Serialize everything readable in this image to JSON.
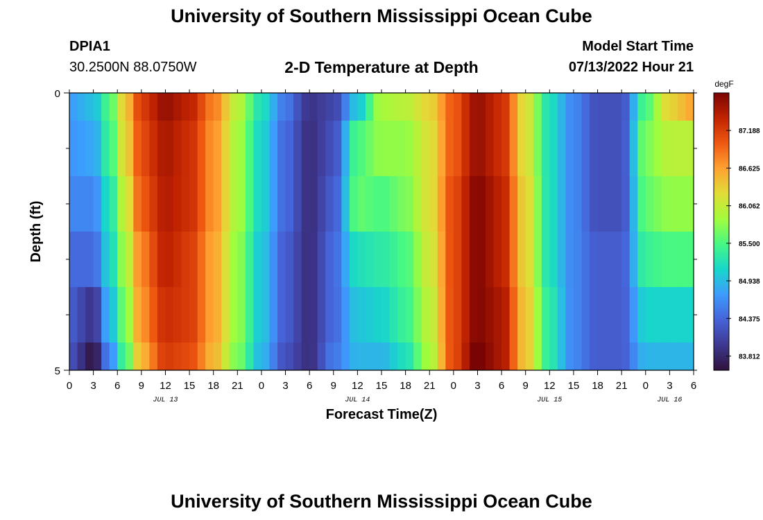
{
  "header": {
    "title": "University of Southern Mississippi Ocean Cube",
    "station": "DPIA1",
    "coords": "30.2500N  88.0750W",
    "subtitle": "2-D Temperature at Depth",
    "model_start_label": "Model Start Time",
    "model_start_value": "07/13/2022 Hour 21"
  },
  "footer": {
    "title": "University of Southern Mississippi Ocean Cube"
  },
  "colors": {
    "ramp": [
      "#30123b",
      "#3e378f",
      "#4663d8",
      "#3e9bfe",
      "#18d6cb",
      "#46f884",
      "#a2fc3c",
      "#e1dd37",
      "#fea331",
      "#ef5911",
      "#c22402",
      "#7a0403"
    ]
  },
  "chart_data": {
    "type": "heatmap",
    "title": "2-D Temperature at Depth",
    "xlabel": "Forecast Time(Z)",
    "ylabel": "Depth (ft)",
    "x_hours_from_jul13_00z": [
      0,
      78
    ],
    "ylim": [
      0,
      5
    ],
    "y_tick_labels": [
      "0",
      "5"
    ],
    "x_tick_labels": [
      "0",
      "3",
      "6",
      "9",
      "12",
      "15",
      "18",
      "21",
      "0",
      "3",
      "6",
      "9",
      "12",
      "15",
      "18",
      "21",
      "0",
      "3",
      "6",
      "9",
      "12",
      "15",
      "18",
      "21",
      "0",
      "3",
      "6"
    ],
    "day_labels": [
      "JUL 13",
      "JUL 14",
      "JUL 15",
      "JUL 16"
    ],
    "colorbar": {
      "unit": "degF",
      "min": 83.6,
      "max": 87.75,
      "tick_values": [
        83.812,
        84.375,
        84.938,
        85.5,
        86.062,
        86.625,
        87.188
      ],
      "tick_labels": [
        "83.812",
        "84.375",
        "84.938",
        "85.500",
        "86.062",
        "86.625",
        "87.188"
      ]
    },
    "temperature_keypoints_hour_value": [
      [
        [
          0,
          84.75
        ],
        [
          3,
          84.95
        ],
        [
          5,
          85.5
        ],
        [
          7,
          86.4
        ],
        [
          9,
          87.2
        ],
        [
          12,
          87.6
        ],
        [
          15,
          87.4
        ],
        [
          18,
          86.8
        ],
        [
          21,
          86.0
        ],
        [
          24,
          85.2
        ],
        [
          27,
          84.5
        ],
        [
          30,
          83.95
        ],
        [
          33,
          84.1
        ],
        [
          36,
          85.0
        ],
        [
          39,
          85.9
        ],
        [
          42,
          86.0
        ],
        [
          45,
          86.3
        ],
        [
          48,
          87.0
        ],
        [
          51,
          87.6
        ],
        [
          54,
          87.3
        ],
        [
          57,
          86.2
        ],
        [
          60,
          85.2
        ],
        [
          63,
          84.6
        ],
        [
          66,
          84.2
        ],
        [
          69,
          84.2
        ],
        [
          72,
          85.5
        ],
        [
          75,
          86.3
        ],
        [
          78,
          86.6
        ]
      ],
      [
        [
          0,
          84.7
        ],
        [
          3,
          84.8
        ],
        [
          5,
          85.4
        ],
        [
          7,
          86.3
        ],
        [
          9,
          87.1
        ],
        [
          12,
          87.5
        ],
        [
          15,
          87.3
        ],
        [
          18,
          86.7
        ],
        [
          21,
          85.9
        ],
        [
          24,
          85.1
        ],
        [
          27,
          84.4
        ],
        [
          30,
          83.9
        ],
        [
          33,
          84.2
        ],
        [
          36,
          85.5
        ],
        [
          39,
          85.8
        ],
        [
          42,
          85.8
        ],
        [
          45,
          86.2
        ],
        [
          48,
          87.0
        ],
        [
          51,
          87.6
        ],
        [
          54,
          87.3
        ],
        [
          57,
          86.2
        ],
        [
          60,
          85.2
        ],
        [
          63,
          84.6
        ],
        [
          66,
          84.2
        ],
        [
          69,
          84.2
        ],
        [
          72,
          85.7
        ],
        [
          75,
          86.0
        ],
        [
          78,
          86.0
        ]
      ],
      [
        [
          0,
          84.6
        ],
        [
          3,
          84.6
        ],
        [
          5,
          85.2
        ],
        [
          7,
          86.1
        ],
        [
          9,
          87.0
        ],
        [
          12,
          87.45
        ],
        [
          15,
          87.3
        ],
        [
          18,
          86.7
        ],
        [
          21,
          85.9
        ],
        [
          24,
          85.1
        ],
        [
          27,
          84.4
        ],
        [
          30,
          83.9
        ],
        [
          33,
          84.3
        ],
        [
          36,
          85.6
        ],
        [
          39,
          85.5
        ],
        [
          42,
          85.7
        ],
        [
          45,
          86.2
        ],
        [
          48,
          87.1
        ],
        [
          51,
          87.7
        ],
        [
          54,
          87.4
        ],
        [
          57,
          86.3
        ],
        [
          60,
          85.2
        ],
        [
          63,
          84.6
        ],
        [
          66,
          84.2
        ],
        [
          69,
          84.2
        ],
        [
          72,
          85.6
        ],
        [
          75,
          85.8
        ],
        [
          78,
          85.8
        ]
      ],
      [
        [
          0,
          84.4
        ],
        [
          3,
          84.4
        ],
        [
          5,
          85.1
        ],
        [
          7,
          85.9
        ],
        [
          9,
          86.8
        ],
        [
          12,
          87.4
        ],
        [
          15,
          87.2
        ],
        [
          18,
          86.6
        ],
        [
          21,
          85.8
        ],
        [
          24,
          85.0
        ],
        [
          27,
          84.3
        ],
        [
          30,
          83.9
        ],
        [
          33,
          84.4
        ],
        [
          36,
          85.2
        ],
        [
          39,
          85.3
        ],
        [
          42,
          85.5
        ],
        [
          45,
          86.1
        ],
        [
          48,
          87.1
        ],
        [
          51,
          87.7
        ],
        [
          54,
          87.4
        ],
        [
          57,
          86.3
        ],
        [
          60,
          85.2
        ],
        [
          63,
          84.6
        ],
        [
          66,
          84.3
        ],
        [
          69,
          84.3
        ],
        [
          72,
          85.4
        ],
        [
          75,
          85.5
        ],
        [
          78,
          85.5
        ]
      ],
      [
        [
          0,
          84.3
        ],
        [
          3,
          83.95
        ],
        [
          5,
          84.9
        ],
        [
          7,
          85.7
        ],
        [
          9,
          86.7
        ],
        [
          12,
          87.3
        ],
        [
          15,
          87.2
        ],
        [
          18,
          86.6
        ],
        [
          21,
          85.8
        ],
        [
          24,
          85.0
        ],
        [
          27,
          84.3
        ],
        [
          30,
          83.9
        ],
        [
          33,
          84.4
        ],
        [
          36,
          85.0
        ],
        [
          39,
          85.1
        ],
        [
          42,
          85.4
        ],
        [
          45,
          86.0
        ],
        [
          48,
          87.1
        ],
        [
          51,
          87.7
        ],
        [
          54,
          87.5
        ],
        [
          57,
          86.4
        ],
        [
          60,
          85.3
        ],
        [
          63,
          84.6
        ],
        [
          66,
          84.3
        ],
        [
          69,
          84.3
        ],
        [
          72,
          85.1
        ],
        [
          75,
          85.1
        ],
        [
          78,
          85.1
        ]
      ],
      [
        [
          0,
          84.2
        ],
        [
          3,
          83.65
        ],
        [
          5,
          84.6
        ],
        [
          7,
          85.5
        ],
        [
          9,
          86.5
        ],
        [
          12,
          87.2
        ],
        [
          15,
          87.1
        ],
        [
          18,
          86.5
        ],
        [
          21,
          85.7
        ],
        [
          24,
          84.9
        ],
        [
          27,
          84.2
        ],
        [
          30,
          83.9
        ],
        [
          33,
          84.5
        ],
        [
          36,
          84.9
        ],
        [
          39,
          84.9
        ],
        [
          42,
          85.2
        ],
        [
          45,
          85.9
        ],
        [
          48,
          87.1
        ],
        [
          51,
          87.8
        ],
        [
          54,
          87.5
        ],
        [
          57,
          86.4
        ],
        [
          60,
          85.3
        ],
        [
          63,
          84.6
        ],
        [
          66,
          84.3
        ],
        [
          69,
          84.3
        ],
        [
          72,
          84.9
        ],
        [
          75,
          84.9
        ],
        [
          78,
          84.9
        ]
      ]
    ]
  }
}
